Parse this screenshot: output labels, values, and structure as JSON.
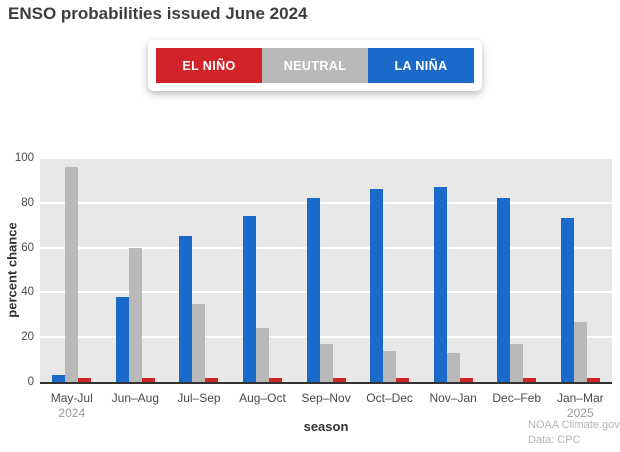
{
  "chart_data": {
    "type": "bar",
    "title": "ENSO probabilities issued June 2024",
    "xlabel": "season",
    "ylabel": "percent chance",
    "ylim": [
      0,
      100
    ],
    "yticks": [
      0,
      20,
      40,
      60,
      80,
      100
    ],
    "grid": "horizontal white gridlines on light-gray plot background",
    "legend_position": "top-center",
    "categories": [
      {
        "label": "May-Jul",
        "sublabel": "2024"
      },
      {
        "label": "Jun–Aug",
        "sublabel": ""
      },
      {
        "label": "Jul–Sep",
        "sublabel": ""
      },
      {
        "label": "Aug–Oct",
        "sublabel": ""
      },
      {
        "label": "Sep–Nov",
        "sublabel": ""
      },
      {
        "label": "Oct–Dec",
        "sublabel": ""
      },
      {
        "label": "Nov–Jan",
        "sublabel": ""
      },
      {
        "label": "Dec–Feb",
        "sublabel": ""
      },
      {
        "label": "Jan–Mar",
        "sublabel": "2025"
      }
    ],
    "series": [
      {
        "name": "LA NIÑA",
        "color": "#1b6ac9",
        "values": [
          3,
          38,
          65,
          74,
          82,
          86,
          87,
          82,
          73
        ]
      },
      {
        "name": "NEUTRAL",
        "color": "#b9b9b9",
        "values": [
          96,
          60,
          35,
          24,
          17,
          14,
          13,
          17,
          27
        ]
      },
      {
        "name": "EL NIÑO",
        "color": "#d2232a",
        "values": [
          2,
          2,
          2,
          2,
          2,
          2,
          2,
          2,
          2
        ]
      }
    ],
    "legend": [
      {
        "label": "EL NIÑO",
        "color": "#d2232a"
      },
      {
        "label": "NEUTRAL",
        "color": "#b9b9b9"
      },
      {
        "label": "LA NIÑA",
        "color": "#1b6ac9"
      }
    ]
  },
  "footer": {
    "credit_line1": "NOAA Climate.gov",
    "credit_line2": "Data: CPC"
  }
}
